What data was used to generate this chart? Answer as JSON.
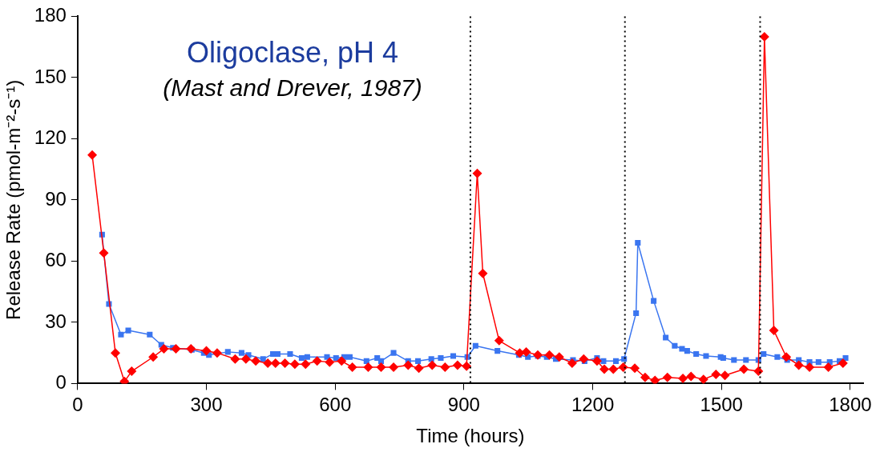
{
  "chart_data": {
    "type": "line",
    "xlabel": "Time (hours)",
    "ylabel": "Release Rate (pmol-m⁻²-s⁻¹)",
    "annotations": [
      "Oligoclase, pH 4",
      "(Mast and Drever, 1987)"
    ],
    "xlim": [
      0,
      1830
    ],
    "xticks": [
      0,
      300,
      600,
      900,
      1200,
      1500,
      1800
    ],
    "ylim": [
      0,
      180
    ],
    "yticks": [
      0,
      30,
      60,
      90,
      120,
      150,
      180
    ],
    "grid": false,
    "legend": false,
    "line_style": "solid",
    "ref_lines": [
      {
        "axis": "x",
        "value": 915,
        "color": "#000000",
        "line_style": "dotted"
      },
      {
        "axis": "x",
        "value": 1275,
        "color": "#000000",
        "line_style": "dotted"
      },
      {
        "axis": "x",
        "value": 1590,
        "color": "#000000",
        "line_style": "dotted"
      }
    ],
    "series": [
      {
        "color": "#ff0000",
        "marker": "diamond",
        "x": [
          34,
          61,
          88,
          109,
          126,
          176,
          201,
          229,
          264,
          300,
          325,
          367,
          392,
          415,
          443,
          461,
          483,
          506,
          531,
          558,
          587,
          615,
          640,
          677,
          707,
          736,
          770,
          795,
          826,
          856,
          885,
          906,
          931,
          944,
          982,
          1030,
          1045,
          1072,
          1099,
          1122,
          1152,
          1179,
          1210,
          1227,
          1248,
          1271,
          1298,
          1322,
          1345,
          1374,
          1410,
          1429,
          1458,
          1487,
          1508,
          1552,
          1586,
          1600,
          1622,
          1651,
          1680,
          1705,
          1749,
          1783
        ],
        "values": [
          112,
          64,
          15,
          1,
          6,
          13,
          17,
          17,
          17,
          16,
          15,
          12,
          12,
          11,
          10,
          10,
          10,
          9.5,
          9.5,
          11,
          10.5,
          11,
          8,
          8,
          8,
          8,
          9,
          7.5,
          9,
          8,
          9,
          8.5,
          103,
          54,
          21,
          15,
          15.5,
          14,
          14,
          13,
          10,
          12,
          11,
          7,
          7,
          8,
          7.5,
          3,
          1.5,
          3,
          2.5,
          3.5,
          2,
          4.5,
          4,
          7,
          6,
          170,
          26,
          13,
          9,
          8,
          8,
          10
        ]
      },
      {
        "color": "#3a75f0",
        "marker": "square",
        "x": [
          57,
          73,
          101,
          118,
          168,
          195,
          222,
          266,
          294,
          306,
          350,
          382,
          398,
          432,
          455,
          466,
          495,
          522,
          535,
          581,
          602,
          621,
          634,
          673,
          698,
          707,
          736,
          770,
          793,
          824,
          846,
          875,
          908,
          927,
          978,
          1028,
          1049,
          1072,
          1093,
          1114,
          1154,
          1181,
          1210,
          1225,
          1254,
          1273,
          1301,
          1305,
          1342,
          1370,
          1391,
          1408,
          1420,
          1441,
          1464,
          1498,
          1504,
          1529,
          1557,
          1586,
          1598,
          1630,
          1653,
          1680,
          1705,
          1726,
          1752,
          1775,
          1789
        ],
        "values": [
          73,
          39,
          24,
          26,
          24,
          19,
          17.5,
          16.5,
          15,
          14,
          15.5,
          15,
          14,
          12,
          14.5,
          14.5,
          14.5,
          12.5,
          13,
          13,
          12.5,
          13,
          13,
          11,
          12.5,
          11,
          15,
          11,
          11,
          12,
          12.5,
          13.5,
          13,
          18.5,
          16,
          14,
          13,
          13.5,
          13,
          12,
          11.5,
          11,
          12.5,
          11,
          11,
          12,
          34.5,
          69,
          40.5,
          22.5,
          18.5,
          17,
          16,
          14.5,
          13.5,
          13,
          12.5,
          11.5,
          11.5,
          11.5,
          14.5,
          13,
          11.5,
          11.5,
          10.5,
          10.5,
          10.5,
          11,
          12.5
        ]
      }
    ]
  }
}
